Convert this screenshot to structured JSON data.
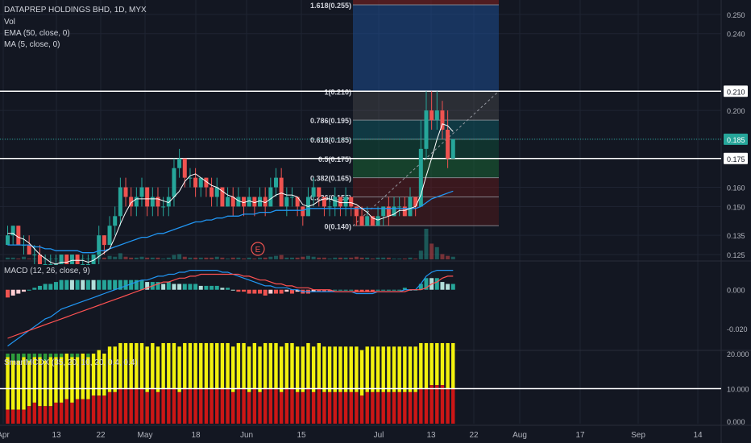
{
  "legend": {
    "title": "DATAPREP HOLDINGS BHD, 1D, MYX",
    "vol": "Vol",
    "ema": "EMA (50, close, 0)",
    "ma": "MA (5, close, 0)"
  },
  "macd_label": "MACD (12, 26, close, 9)",
  "smart_label": "SmartMCDX (35, 20, 10, 20, 0.4, 0.4)",
  "earnings_marker": "E",
  "colors": {
    "background": "#131722",
    "grid": "#1f2433",
    "axis_text": "#b2b5be",
    "up": "#26a69a",
    "down": "#ef5350",
    "ema": "#2196f3",
    "ma": "#ffffff",
    "macd_line": "#2196f3",
    "signal_line": "#ff5252",
    "hist_up_strong": "#26a69a",
    "hist_up_weak": "#b2dfdb",
    "hist_down_strong": "#ef5350",
    "hist_down_weak": "#ffcdd2",
    "smart_green": "#2e9c3c",
    "smart_yellow": "#f2f20e",
    "smart_red": "#cc1616"
  },
  "chart_data": [
    {
      "type": "candlestick",
      "title": "DATAPREP HOLDINGS BHD, 1D, MYX",
      "ylim": [
        0.1225,
        0.2575
      ],
      "y_ticks": [
        "0.250",
        "0.240",
        "0.210",
        "0.200",
        "0.185",
        "0.175",
        "0.160",
        "0.150",
        "0.135",
        "0.125"
      ],
      "x_ticks": [
        "Apr",
        "13",
        "22",
        "May",
        "18",
        "Jun",
        "15",
        "Jul",
        "13",
        "22",
        "Aug",
        "17",
        "Sep",
        "14"
      ],
      "price_badges": [
        {
          "label": "0.210",
          "style": "white"
        },
        {
          "label": "0.185",
          "style": "teal"
        },
        {
          "label": "0.175",
          "style": "white"
        }
      ],
      "horizontal_lines": [
        0.21,
        0.175
      ],
      "fibonacci": {
        "levels": [
          {
            "label": "1.618(0.255)",
            "value": 0.255
          },
          {
            "label": "1(0.210)",
            "value": 0.21
          },
          {
            "label": "0.786(0.195)",
            "value": 0.195
          },
          {
            "label": "0.618(0.185)",
            "value": 0.185
          },
          {
            "label": "0.5(0.175)",
            "value": 0.175
          },
          {
            "label": "0.382(0.165)",
            "value": 0.165
          },
          {
            "label": "0.236(0.155)",
            "value": 0.155
          },
          {
            "label": "0(0.140)",
            "value": 0.14
          }
        ]
      },
      "candles": [
        [
          0.13,
          0.135,
          0.13,
          0.14
        ],
        [
          0.135,
          0.14,
          0.13,
          0.14
        ],
        [
          0.14,
          0.13,
          0.13,
          0.14
        ],
        [
          0.13,
          0.13,
          0.125,
          0.135
        ],
        [
          0.13,
          0.125,
          0.125,
          0.135
        ],
        [
          0.125,
          0.125,
          0.12,
          0.13
        ],
        [
          0.125,
          0.12,
          0.12,
          0.13
        ],
        [
          0.12,
          0.12,
          0.12,
          0.125
        ],
        [
          0.12,
          0.12,
          0.12,
          0.125
        ],
        [
          0.12,
          0.12,
          0.12,
          0.125
        ],
        [
          0.12,
          0.125,
          0.12,
          0.125
        ],
        [
          0.125,
          0.12,
          0.12,
          0.125
        ],
        [
          0.12,
          0.125,
          0.12,
          0.125
        ],
        [
          0.125,
          0.12,
          0.12,
          0.125
        ],
        [
          0.12,
          0.12,
          0.12,
          0.125
        ],
        [
          0.12,
          0.12,
          0.12,
          0.125
        ],
        [
          0.12,
          0.125,
          0.12,
          0.125
        ],
        [
          0.125,
          0.135,
          0.12,
          0.14
        ],
        [
          0.135,
          0.13,
          0.125,
          0.135
        ],
        [
          0.13,
          0.14,
          0.13,
          0.145
        ],
        [
          0.14,
          0.145,
          0.135,
          0.15
        ],
        [
          0.145,
          0.16,
          0.14,
          0.165
        ],
        [
          0.16,
          0.155,
          0.15,
          0.165
        ],
        [
          0.155,
          0.15,
          0.145,
          0.16
        ],
        [
          0.15,
          0.155,
          0.145,
          0.16
        ],
        [
          0.155,
          0.16,
          0.15,
          0.165
        ],
        [
          0.16,
          0.15,
          0.145,
          0.16
        ],
        [
          0.15,
          0.155,
          0.145,
          0.16
        ],
        [
          0.155,
          0.15,
          0.145,
          0.16
        ],
        [
          0.15,
          0.15,
          0.145,
          0.155
        ],
        [
          0.15,
          0.155,
          0.145,
          0.16
        ],
        [
          0.155,
          0.17,
          0.15,
          0.175
        ],
        [
          0.17,
          0.175,
          0.165,
          0.18
        ],
        [
          0.175,
          0.165,
          0.16,
          0.175
        ],
        [
          0.165,
          0.165,
          0.16,
          0.17
        ],
        [
          0.165,
          0.16,
          0.155,
          0.17
        ],
        [
          0.16,
          0.165,
          0.155,
          0.165
        ],
        [
          0.165,
          0.16,
          0.155,
          0.165
        ],
        [
          0.16,
          0.155,
          0.15,
          0.165
        ],
        [
          0.155,
          0.16,
          0.15,
          0.165
        ],
        [
          0.16,
          0.15,
          0.15,
          0.16
        ],
        [
          0.15,
          0.155,
          0.15,
          0.16
        ],
        [
          0.155,
          0.15,
          0.145,
          0.16
        ],
        [
          0.15,
          0.155,
          0.15,
          0.16
        ],
        [
          0.155,
          0.15,
          0.145,
          0.155
        ],
        [
          0.15,
          0.155,
          0.15,
          0.16
        ],
        [
          0.155,
          0.15,
          0.145,
          0.155
        ],
        [
          0.15,
          0.155,
          0.15,
          0.16
        ],
        [
          0.155,
          0.15,
          0.145,
          0.16
        ],
        [
          0.15,
          0.16,
          0.15,
          0.165
        ],
        [
          0.16,
          0.165,
          0.155,
          0.17
        ],
        [
          0.165,
          0.15,
          0.15,
          0.17
        ],
        [
          0.15,
          0.155,
          0.145,
          0.16
        ],
        [
          0.155,
          0.155,
          0.15,
          0.16
        ],
        [
          0.155,
          0.15,
          0.145,
          0.155
        ],
        [
          0.15,
          0.145,
          0.14,
          0.15
        ],
        [
          0.145,
          0.155,
          0.145,
          0.16
        ],
        [
          0.155,
          0.16,
          0.15,
          0.165
        ],
        [
          0.16,
          0.155,
          0.15,
          0.16
        ],
        [
          0.155,
          0.15,
          0.145,
          0.155
        ],
        [
          0.15,
          0.15,
          0.145,
          0.155
        ],
        [
          0.15,
          0.155,
          0.145,
          0.16
        ],
        [
          0.155,
          0.15,
          0.145,
          0.155
        ],
        [
          0.15,
          0.155,
          0.145,
          0.16
        ],
        [
          0.155,
          0.15,
          0.145,
          0.155
        ],
        [
          0.15,
          0.145,
          0.14,
          0.15
        ],
        [
          0.145,
          0.14,
          0.14,
          0.15
        ],
        [
          0.14,
          0.145,
          0.14,
          0.15
        ],
        [
          0.145,
          0.14,
          0.14,
          0.145
        ],
        [
          0.14,
          0.145,
          0.14,
          0.15
        ],
        [
          0.145,
          0.15,
          0.14,
          0.15
        ],
        [
          0.15,
          0.145,
          0.14,
          0.155
        ],
        [
          0.145,
          0.15,
          0.145,
          0.155
        ],
        [
          0.15,
          0.15,
          0.145,
          0.155
        ],
        [
          0.15,
          0.145,
          0.145,
          0.155
        ],
        [
          0.145,
          0.155,
          0.145,
          0.16
        ],
        [
          0.155,
          0.15,
          0.145,
          0.155
        ],
        [
          0.15,
          0.18,
          0.15,
          0.195
        ],
        [
          0.18,
          0.2,
          0.175,
          0.21
        ],
        [
          0.2,
          0.195,
          0.19,
          0.21
        ],
        [
          0.195,
          0.2,
          0.19,
          0.21
        ],
        [
          0.2,
          0.19,
          0.185,
          0.205
        ],
        [
          0.19,
          0.175,
          0.17,
          0.2
        ],
        [
          0.175,
          0.185,
          0.175,
          0.185
        ]
      ],
      "volume": [
        2,
        2,
        1,
        3,
        1,
        1,
        2,
        1,
        1,
        1,
        1,
        1,
        1,
        1,
        1,
        1,
        1,
        6,
        2,
        4,
        3,
        7,
        3,
        2,
        2,
        3,
        2,
        2,
        2,
        1,
        2,
        5,
        6,
        3,
        2,
        2,
        2,
        2,
        2,
        3,
        2,
        1,
        2,
        2,
        1,
        2,
        1,
        2,
        2,
        3,
        4,
        5,
        2,
        2,
        2,
        3,
        4,
        3,
        2,
        2,
        1,
        2,
        2,
        2,
        2,
        3,
        2,
        2,
        1,
        2,
        2,
        2,
        1,
        1,
        1,
        2,
        1,
        10,
        35,
        18,
        14,
        6,
        4,
        3
      ],
      "ema_50": [
        0.13,
        0.13,
        0.13,
        0.13,
        0.13,
        0.129,
        0.129,
        0.128,
        0.128,
        0.127,
        0.127,
        0.127,
        0.127,
        0.127,
        0.126,
        0.126,
        0.126,
        0.127,
        0.127,
        0.128,
        0.129,
        0.13,
        0.131,
        0.132,
        0.133,
        0.134,
        0.134,
        0.135,
        0.136,
        0.136,
        0.137,
        0.138,
        0.139,
        0.14,
        0.141,
        0.142,
        0.142,
        0.143,
        0.143,
        0.144,
        0.144,
        0.145,
        0.145,
        0.145,
        0.146,
        0.146,
        0.146,
        0.147,
        0.147,
        0.147,
        0.148,
        0.148,
        0.148,
        0.148,
        0.148,
        0.148,
        0.149,
        0.149,
        0.149,
        0.149,
        0.149,
        0.149,
        0.149,
        0.149,
        0.149,
        0.149,
        0.149,
        0.149,
        0.149,
        0.149,
        0.149,
        0.149,
        0.149,
        0.149,
        0.149,
        0.149,
        0.149,
        0.15,
        0.152,
        0.154,
        0.155,
        0.156,
        0.157,
        0.158
      ],
      "ma_5": [
        0.136,
        0.136,
        0.134,
        0.133,
        0.131,
        0.128,
        0.125,
        0.123,
        0.121,
        0.12,
        0.121,
        0.121,
        0.122,
        0.122,
        0.122,
        0.121,
        0.122,
        0.124,
        0.126,
        0.128,
        0.134,
        0.141,
        0.147,
        0.152,
        0.154,
        0.154,
        0.154,
        0.154,
        0.154,
        0.153,
        0.152,
        0.155,
        0.158,
        0.163,
        0.166,
        0.167,
        0.165,
        0.163,
        0.161,
        0.16,
        0.158,
        0.156,
        0.155,
        0.153,
        0.152,
        0.153,
        0.152,
        0.153,
        0.152,
        0.154,
        0.156,
        0.157,
        0.156,
        0.156,
        0.155,
        0.151,
        0.15,
        0.151,
        0.153,
        0.154,
        0.154,
        0.153,
        0.152,
        0.152,
        0.152,
        0.151,
        0.149,
        0.147,
        0.144,
        0.143,
        0.144,
        0.145,
        0.146,
        0.148,
        0.148,
        0.149,
        0.15,
        0.156,
        0.166,
        0.175,
        0.185,
        0.193,
        0.192,
        0.189
      ]
    },
    {
      "type": "line",
      "title": "MACD (12, 26, close, 9)",
      "ylim": [
        -0.03,
        0.014
      ],
      "y_ticks": [
        "0.000",
        "-0.020"
      ],
      "series": [
        {
          "name": "MACD",
          "values": [
            -0.029,
            -0.027,
            -0.025,
            -0.023,
            -0.021,
            -0.019,
            -0.017,
            -0.015,
            -0.014,
            -0.012,
            -0.01,
            -0.009,
            -0.008,
            -0.007,
            -0.006,
            -0.005,
            -0.004,
            -0.003,
            -0.002,
            -0.001,
            0.0,
            0.001,
            0.002,
            0.003,
            0.004,
            0.005,
            0.005,
            0.006,
            0.007,
            0.007,
            0.008,
            0.008,
            0.009,
            0.009,
            0.01,
            0.01,
            0.01,
            0.01,
            0.01,
            0.01,
            0.009,
            0.009,
            0.008,
            0.007,
            0.006,
            0.005,
            0.004,
            0.003,
            0.002,
            0.002,
            0.001,
            0.001,
            0.001,
            0.0,
            0.0,
            -0.001,
            -0.001,
            -0.001,
            -0.001,
            -0.001,
            -0.001,
            -0.001,
            -0.001,
            -0.001,
            -0.001,
            -0.002,
            -0.002,
            -0.002,
            -0.002,
            -0.001,
            -0.001,
            -0.001,
            -0.001,
            -0.001,
            0.0,
            0.0,
            0.0,
            0.003,
            0.007,
            0.009,
            0.01,
            0.01,
            0.01,
            0.01
          ]
        },
        {
          "name": "Signal",
          "values": [
            -0.025,
            -0.024,
            -0.023,
            -0.022,
            -0.021,
            -0.02,
            -0.019,
            -0.018,
            -0.017,
            -0.016,
            -0.015,
            -0.014,
            -0.013,
            -0.012,
            -0.011,
            -0.01,
            -0.009,
            -0.008,
            -0.007,
            -0.006,
            -0.005,
            -0.004,
            -0.003,
            -0.002,
            -0.001,
            0.0,
            0.001,
            0.002,
            0.003,
            0.004,
            0.004,
            0.005,
            0.006,
            0.006,
            0.007,
            0.007,
            0.008,
            0.008,
            0.008,
            0.008,
            0.008,
            0.008,
            0.008,
            0.008,
            0.007,
            0.007,
            0.006,
            0.005,
            0.005,
            0.004,
            0.003,
            0.003,
            0.002,
            0.002,
            0.001,
            0.001,
            0.001,
            0.0,
            0.0,
            0.0,
            0.0,
            -0.001,
            -0.001,
            -0.001,
            -0.001,
            -0.001,
            -0.001,
            -0.001,
            -0.001,
            -0.001,
            -0.001,
            -0.001,
            -0.001,
            -0.001,
            -0.001,
            0.0,
            0.0,
            0.0,
            0.001,
            0.003,
            0.004,
            0.006,
            0.007,
            0.007
          ]
        }
      ]
    },
    {
      "type": "bar",
      "title": "SmartMCDX (35, 20, 10, 20, 0.4, 0.4)",
      "ylim": [
        0,
        20
      ],
      "y_ticks": [
        "20.000",
        "10.000",
        "0.000"
      ],
      "reference_line": 10,
      "stack_total": 20,
      "red_values": [
        4,
        4,
        4,
        4,
        5,
        6,
        5,
        5,
        5,
        6,
        6,
        7,
        6,
        7,
        7,
        7,
        8,
        8,
        8,
        9,
        9,
        10,
        10,
        10,
        10,
        10,
        9,
        10,
        9,
        10,
        10,
        10,
        9,
        10,
        10,
        10,
        10,
        10,
        10,
        10,
        10,
        10,
        9,
        10,
        10,
        9,
        10,
        9,
        10,
        10,
        10,
        9,
        10,
        10,
        9,
        9,
        10,
        9,
        10,
        9,
        9,
        9,
        9,
        9,
        9,
        9,
        8,
        9,
        9,
        9,
        9,
        9,
        9,
        9,
        9,
        9,
        9,
        10,
        10,
        11,
        11,
        11,
        10,
        10
      ],
      "yellow_values": [
        15,
        14,
        14,
        15,
        13,
        13,
        14,
        13,
        14,
        13,
        13,
        13,
        13,
        12,
        13,
        12,
        12,
        13,
        12,
        13,
        13,
        13,
        13,
        13,
        13,
        13,
        13,
        13,
        13,
        13,
        13,
        13,
        13,
        13,
        13,
        13,
        13,
        13,
        13,
        13,
        13,
        13,
        13,
        13,
        13,
        13,
        13,
        13,
        13,
        13,
        13,
        13,
        13,
        13,
        13,
        13,
        13,
        13,
        13,
        13,
        13,
        13,
        13,
        13,
        13,
        13,
        13,
        13,
        13,
        13,
        13,
        13,
        13,
        13,
        13,
        13,
        13,
        13,
        13,
        12,
        12,
        12,
        13,
        13
      ]
    }
  ]
}
